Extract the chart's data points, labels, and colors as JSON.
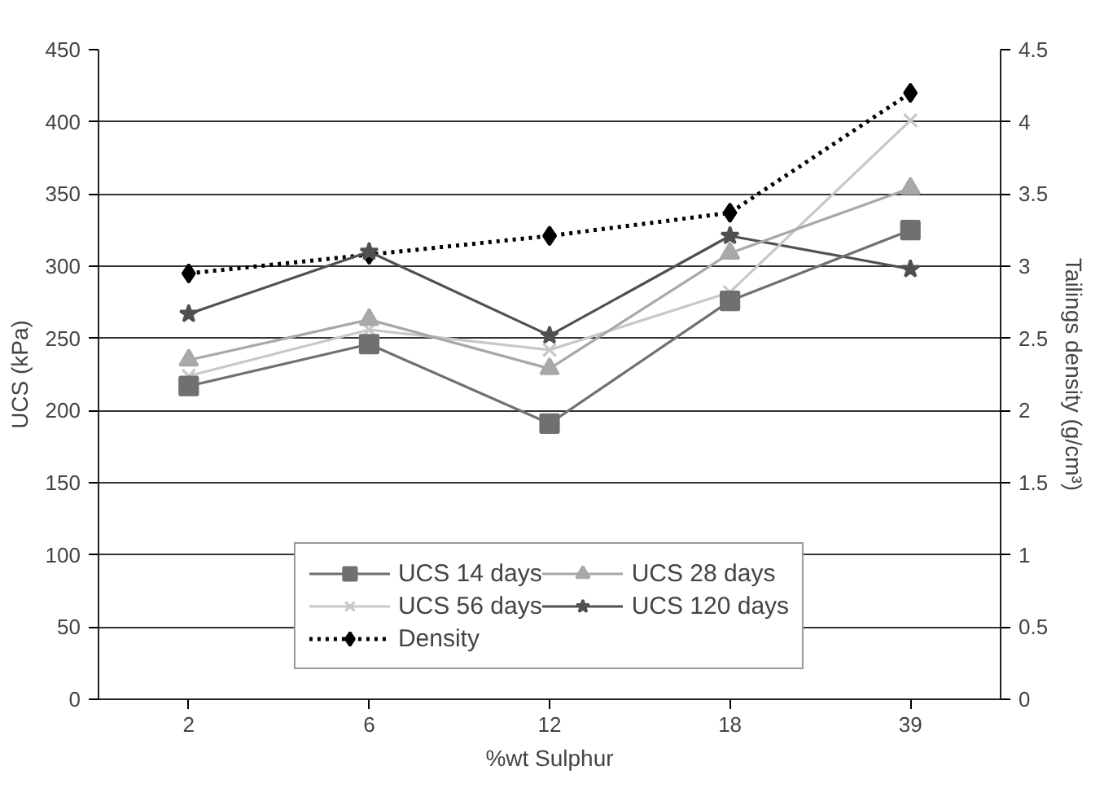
{
  "chart_data": {
    "type": "line",
    "xlabel": "%wt Sulphur",
    "ylabel": "UCS (kPa)",
    "y2label": "Tailings density (g/cm³)",
    "categories": [
      "2",
      "6",
      "12",
      "18",
      "39"
    ],
    "series": [
      {
        "name": "UCS 14 days",
        "color": "#707070",
        "marker": "square",
        "line_style": "solid",
        "values": [
          217,
          246,
          191,
          276,
          325
        ]
      },
      {
        "name": "UCS 28 days",
        "color": "#a8a8a8",
        "marker": "triangle",
        "line_style": "solid",
        "values": [
          235,
          263,
          229,
          309,
          354
        ]
      },
      {
        "name": "UCS 56 days",
        "color": "#c8c8c8",
        "marker": "cross",
        "line_style": "solid",
        "values": [
          224,
          256,
          242,
          282,
          401
        ]
      },
      {
        "name": "UCS 120 days",
        "color": "#505050",
        "marker": "star",
        "line_style": "solid",
        "values": [
          267,
          310,
          252,
          321,
          298
        ]
      },
      {
        "name": "Density",
        "color": "#000000",
        "marker": "diamond",
        "line_style": "dotted",
        "axis": "y2",
        "values": [
          2.95,
          3.08,
          3.21,
          3.37,
          4.2
        ]
      }
    ],
    "ylim": [
      0,
      450
    ],
    "yticks": [
      0,
      50,
      100,
      150,
      200,
      250,
      300,
      350,
      400,
      450
    ],
    "y2lim": [
      0,
      4.5
    ],
    "y2ticks": [
      0,
      0.5,
      1,
      1.5,
      2,
      2.5,
      3,
      3.5,
      4,
      4.5
    ],
    "grid": "y",
    "legend": "bottom"
  }
}
